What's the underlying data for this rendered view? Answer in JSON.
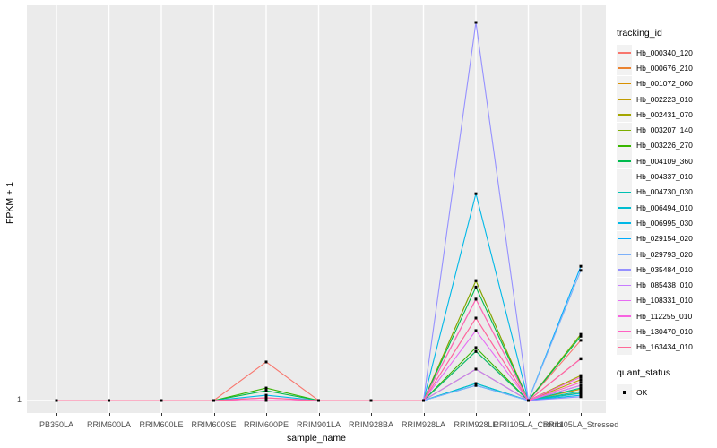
{
  "figure": {
    "panel_bg": "#EBEBEB",
    "gridline_color": "#FFFFFF",
    "tick_color": "#333333",
    "tick_label_color": "#4D4D4D"
  },
  "chart_data": {
    "type": "line",
    "title": "",
    "xlabel": "sample_name",
    "ylabel": "FPKM + 1",
    "y_ticks": [
      "1"
    ],
    "ylim_note": "log-style axis; only the value 1 is labeled at the baseline, values below are estimated fractions of panel height above the y=1 baseline (0 = 1 FPKM+1, 1 = top peak)",
    "grid": "vertical white gridlines per category, horizontal white line at y=1",
    "legend_position": "right",
    "point_marker": {
      "shape": "square",
      "color": "#000000",
      "label": "OK"
    },
    "x_categories": [
      "PB350LA",
      "RRIM600LA",
      "RRIM600LE",
      "RRIM600SE",
      "RRIM600PE",
      "RRIM901LA",
      "RRIM928BA",
      "RRIM928LA",
      "RRIM928LE",
      "RRII105LA_Control",
      "RRII105LA_Stressed"
    ],
    "series": [
      {
        "name": "Hb_000340_120",
        "color": "#F8766D",
        "values": [
          0,
          0,
          0,
          0,
          0.102,
          0,
          0,
          0,
          0.317,
          0,
          0.159
        ]
      },
      {
        "name": "Hb_000676_210",
        "color": "#EA8331",
        "values": [
          0,
          0,
          0,
          0,
          0,
          0,
          0,
          0,
          0.268,
          0,
          0.04
        ]
      },
      {
        "name": "Hb_001072_060",
        "color": "#D89000",
        "values": [
          0,
          0,
          0,
          0,
          0,
          0,
          0,
          0,
          0.13,
          0,
          0.03
        ]
      },
      {
        "name": "Hb_002223_010",
        "color": "#C09B00",
        "values": [
          0,
          0,
          0,
          0,
          0,
          0,
          0,
          0,
          0.083,
          0,
          0.055
        ]
      },
      {
        "name": "Hb_002431_070",
        "color": "#A3A500",
        "values": [
          0,
          0,
          0,
          0,
          0,
          0,
          0,
          0,
          0.13,
          0,
          0.066
        ]
      },
      {
        "name": "Hb_003207_140",
        "color": "#7CAE00",
        "values": [
          0,
          0,
          0,
          0,
          0,
          0,
          0,
          0,
          0.317,
          0,
          0.175
        ]
      },
      {
        "name": "Hb_003226_270",
        "color": "#39B600",
        "values": [
          0,
          0,
          0,
          0,
          0.033,
          0,
          0,
          0,
          0.14,
          0,
          0.02
        ]
      },
      {
        "name": "Hb_004109_360",
        "color": "#00BB4E",
        "values": [
          0,
          0,
          0,
          0,
          0.026,
          0,
          0,
          0,
          0.3,
          0,
          0.17
        ]
      },
      {
        "name": "Hb_004337_010",
        "color": "#00C087",
        "values": [
          0,
          0,
          0,
          0,
          0,
          0,
          0,
          0,
          0.13,
          0,
          0.033
        ]
      },
      {
        "name": "Hb_004730_030",
        "color": "#00C0B2",
        "values": [
          0,
          0,
          0,
          0,
          0,
          0,
          0,
          0,
          0.045,
          0,
          0.024
        ]
      },
      {
        "name": "Hb_006494_010",
        "color": "#00BDD0",
        "values": [
          0,
          0,
          0,
          0,
          0,
          0,
          0,
          0,
          0.045,
          0,
          0.019
        ]
      },
      {
        "name": "Hb_006995_030",
        "color": "#00B8E7",
        "values": [
          0,
          0,
          0,
          0,
          0.014,
          0,
          0,
          0,
          0.547,
          0,
          0.014
        ]
      },
      {
        "name": "Hb_029154_020",
        "color": "#00ACFC",
        "values": [
          0,
          0,
          0,
          0,
          0,
          0,
          0,
          0,
          0.04,
          0,
          0.355
        ]
      },
      {
        "name": "Hb_029793_020",
        "color": "#7CB0F9",
        "values": [
          0,
          0,
          0,
          0,
          0,
          0,
          0,
          0,
          0.04,
          0,
          0.344
        ]
      },
      {
        "name": "Hb_035484_010",
        "color": "#9590FF",
        "values": [
          0,
          0,
          0,
          0,
          0,
          0,
          0,
          0,
          1.0,
          0,
          0.01
        ]
      },
      {
        "name": "Hb_085438_010",
        "color": "#C77CFF",
        "values": [
          0,
          0,
          0,
          0,
          0,
          0,
          0,
          0,
          0.083,
          0,
          0.04
        ]
      },
      {
        "name": "Hb_108331_010",
        "color": "#E76BF3",
        "values": [
          0,
          0,
          0,
          0,
          0,
          0,
          0,
          0,
          0.185,
          0,
          0.11
        ]
      },
      {
        "name": "Hb_112255_010",
        "color": "#F763E0",
        "values": [
          0,
          0,
          0,
          0,
          0.007,
          0,
          0,
          0,
          0.218,
          0,
          0.062
        ]
      },
      {
        "name": "Hb_130470_010",
        "color": "#FF61C3",
        "values": [
          0,
          0,
          0,
          0,
          0,
          0,
          0,
          0,
          0.268,
          0,
          0.048
        ]
      },
      {
        "name": "Hb_163434_010",
        "color": "#FF6A98",
        "values": [
          0,
          0,
          0,
          0,
          0.007,
          0,
          0,
          0,
          0.218,
          0,
          0.111
        ]
      }
    ]
  },
  "legend": {
    "tracking_title": "tracking_id",
    "quant_title": "quant_status",
    "quant_items": [
      {
        "label": "OK"
      }
    ]
  }
}
